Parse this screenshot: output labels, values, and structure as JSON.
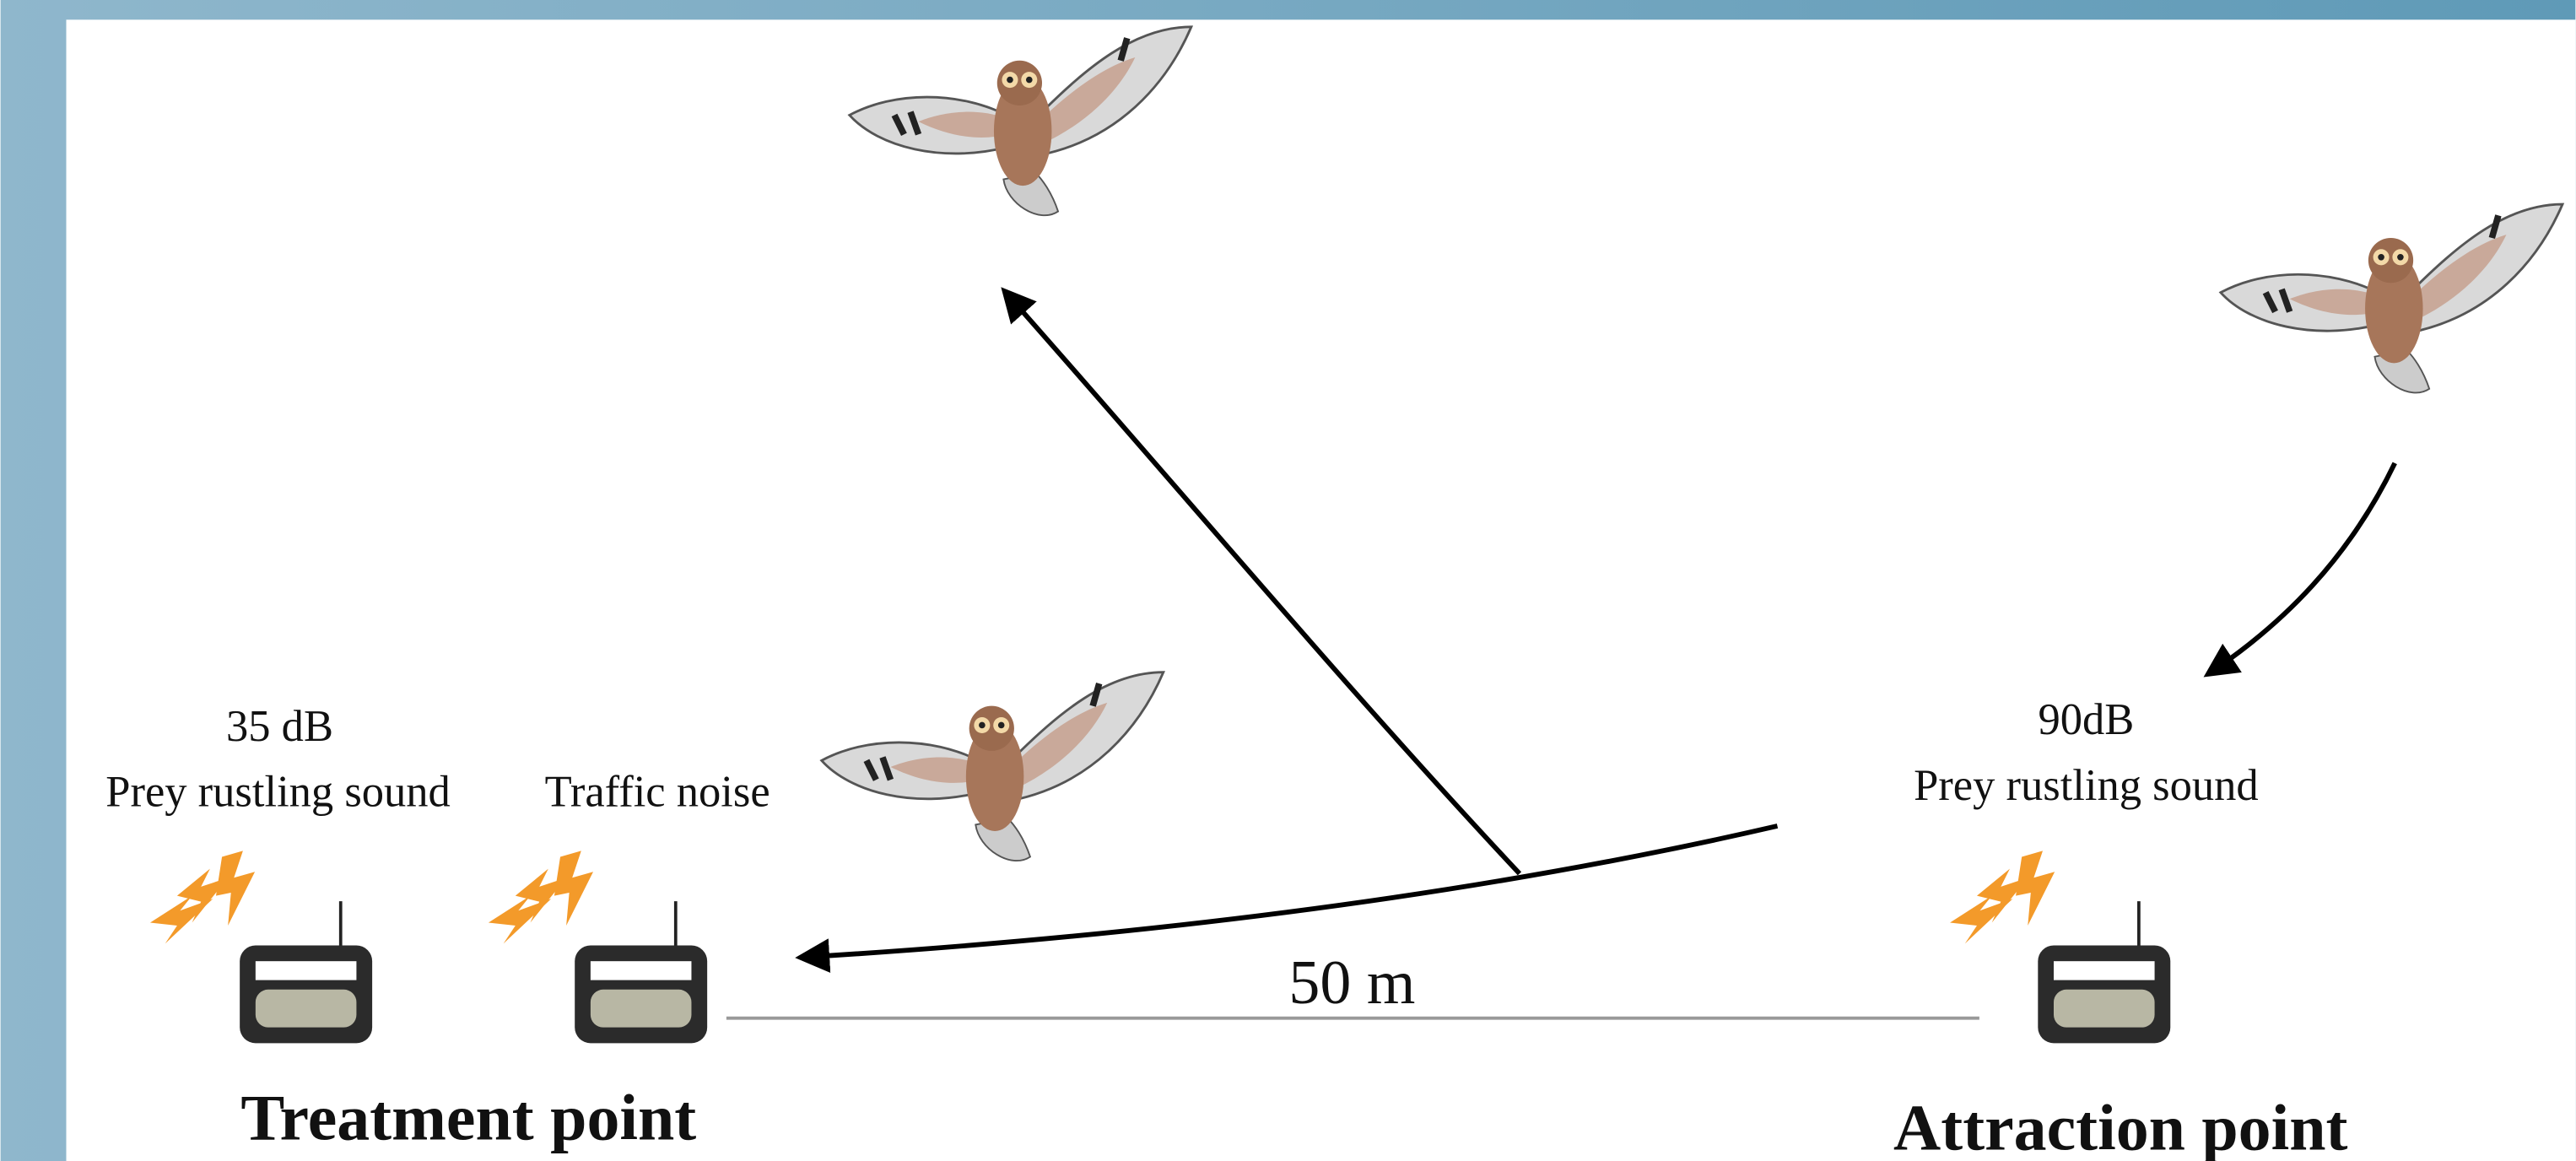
{
  "treatment_point": {
    "label": "Treatment point",
    "speakers": [
      {
        "level": "35 dB",
        "sound": "Prey rustling sound"
      },
      {
        "sound": "Traffic noise"
      }
    ]
  },
  "attraction_point": {
    "label": "Attraction point",
    "level": "90dB",
    "sound": "Prey rustling sound"
  },
  "distance": "50 m"
}
